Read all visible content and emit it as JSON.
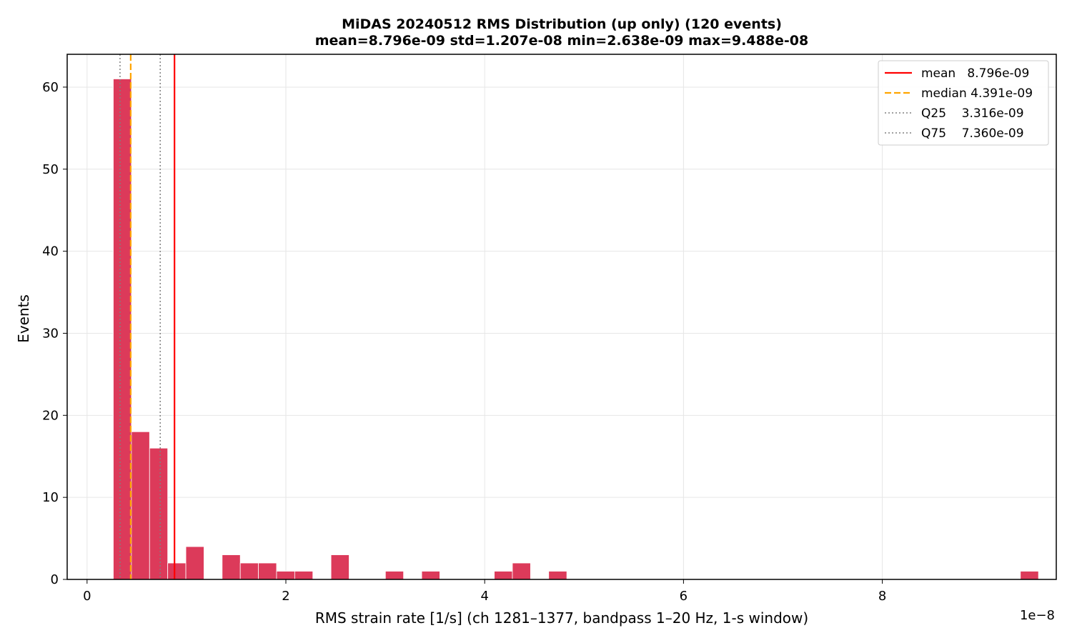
{
  "chart_data": {
    "type": "bar",
    "title": "MiDAS 20240512  RMS Distribution  (up only)  (120 events)",
    "subtitle": "mean=8.796e-09  std=1.207e-08  min=2.638e-09  max=9.488e-08",
    "xlabel": "RMS strain rate [1/s]  (ch 1281–1377, bandpass 1–20 Hz, 1-s window)",
    "ylabel": "Events",
    "x_offset_label": "1e−8",
    "xlim": [
      -0.2,
      9.75
    ],
    "ylim": [
      0,
      64
    ],
    "x_ticks": [
      0,
      2,
      4,
      6,
      8
    ],
    "y_ticks": [
      0,
      10,
      20,
      30,
      40,
      50,
      60
    ],
    "grid": true,
    "legend_position": "top-right",
    "bin_edges": [
      0.2638,
      0.4463,
      0.6288,
      0.8113,
      0.9938,
      1.1763,
      1.3588,
      1.5413,
      1.7238,
      1.9063,
      2.0888,
      2.2713,
      2.4538,
      2.6363,
      2.8188,
      3.0013,
      3.1838,
      3.3663,
      3.5488,
      3.7313,
      3.9138,
      4.0963,
      4.2788,
      4.4613,
      4.6438,
      4.8263,
      5.0088,
      5.1913,
      5.3738,
      5.5563,
      5.7388,
      5.9213,
      6.1038,
      6.2863,
      6.4688,
      6.6513,
      6.8338,
      7.0163,
      7.1988,
      7.3813,
      7.5638,
      7.7463,
      7.9288,
      8.1113,
      8.2938,
      8.4763,
      8.6588,
      8.8413,
      9.0238,
      9.2063,
      9.3888,
      9.5713
    ],
    "counts": [
      61,
      18,
      16,
      2,
      4,
      0,
      3,
      2,
      2,
      1,
      1,
      0,
      3,
      0,
      0,
      1,
      0,
      1,
      0,
      0,
      0,
      1,
      2,
      0,
      1,
      0,
      0,
      0,
      0,
      0,
      0,
      0,
      0,
      0,
      0,
      0,
      0,
      0,
      0,
      0,
      0,
      0,
      0,
      0,
      0,
      0,
      0,
      0,
      0,
      0,
      1
    ],
    "bar_color": "#dc3a5a",
    "reference_lines": [
      {
        "key": "mean",
        "label": "mean   8.796e-09",
        "x": 0.8796,
        "color": "#ff0000",
        "style": "solid"
      },
      {
        "key": "median",
        "label": "median 4.391e-09",
        "x": 0.4391,
        "color": "#ffa500",
        "style": "dashed"
      },
      {
        "key": "q25",
        "label": "Q25    3.316e-09",
        "x": 0.3316,
        "color": "#808080",
        "style": "dotted"
      },
      {
        "key": "q75",
        "label": "Q75    7.360e-09",
        "x": 0.736,
        "color": "#808080",
        "style": "dotted"
      }
    ]
  }
}
